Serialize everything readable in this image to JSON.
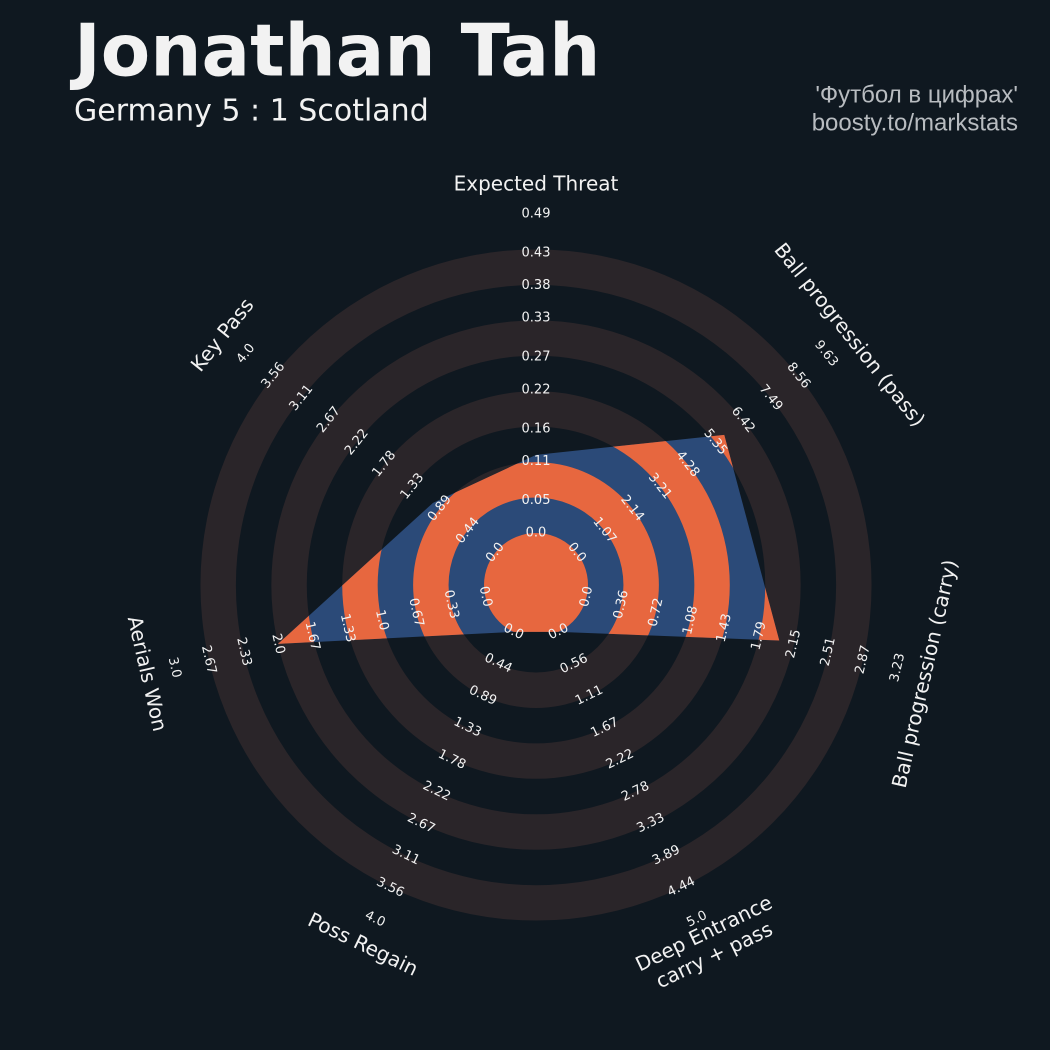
{
  "chart_data": {
    "type": "radar",
    "title": "Jonathan Tah",
    "subtitle": "Germany 5 : 1 Scotland",
    "credits": [
      "'Футбол в цифрах'",
      "boosty.to/markstats"
    ],
    "axes": [
      {
        "label": [
          "Expected Threat"
        ],
        "lim": [
          0,
          0.49
        ],
        "ticks": [
          {
            "value": 0,
            "label": "0.0"
          },
          0.05,
          0.11,
          0.16,
          0.22,
          0.27,
          0.33,
          0.38,
          0.43,
          0.49
        ]
      },
      {
        "label": [
          "Ball progression (pass)"
        ],
        "lim": [
          0,
          9.63
        ],
        "ticks": [
          {
            "value": 0,
            "label": "0.0"
          },
          1.07,
          2.14,
          3.21,
          4.28,
          5.35,
          6.42,
          7.49,
          8.56,
          9.63
        ]
      },
      {
        "label": [
          "Ball progression (carry)"
        ],
        "lim": [
          0,
          3.23
        ],
        "ticks": [
          {
            "value": 0,
            "label": "0.0"
          },
          0.36,
          0.72,
          1.08,
          1.43,
          1.79,
          2.15,
          2.51,
          2.87,
          3.23
        ]
      },
      {
        "label": [
          "Deep Entrance",
          "carry + pass"
        ],
        "lim": [
          0,
          5
        ],
        "ticks": [
          {
            "value": 0,
            "label": "0.0"
          },
          0.56,
          1.11,
          1.67,
          2.22,
          2.78,
          3.33,
          3.89,
          4.44,
          {
            "value": 5,
            "label": "5.0"
          }
        ]
      },
      {
        "label": [
          "Poss Regain"
        ],
        "lim": [
          0,
          4
        ],
        "ticks": [
          {
            "value": 0,
            "label": "0.0"
          },
          0.44,
          0.89,
          1.33,
          1.78,
          2.22,
          2.67,
          3.11,
          3.56,
          {
            "value": 4,
            "label": "4.0"
          }
        ]
      },
      {
        "label": [
          "Aerials Won"
        ],
        "lim": [
          0,
          3
        ],
        "ticks": [
          {
            "value": 0,
            "label": "0.0"
          },
          0.33,
          0.67,
          {
            "value": 1,
            "label": "1.0"
          },
          1.33,
          1.67,
          {
            "value": 2,
            "label": "2.0"
          },
          2.33,
          2.67,
          {
            "value": 3,
            "label": "3.0"
          }
        ]
      },
      {
        "label": [
          "Key Pass"
        ],
        "lim": [
          0,
          4
        ],
        "ticks": [
          {
            "value": 0,
            "label": "0.0"
          },
          0.44,
          0.89,
          1.33,
          1.78,
          2.22,
          2.67,
          3.11,
          3.56,
          {
            "value": 4,
            "label": "4.0"
          }
        ]
      }
    ],
    "series": [
      {
        "values": [
          0.12,
          5.7,
          2.0,
          0,
          0,
          2.0,
          1.0
        ],
        "color": "#2b4a78",
        "ring_color": "#e7673f"
      }
    ],
    "ring_color": "#2a2529"
  }
}
